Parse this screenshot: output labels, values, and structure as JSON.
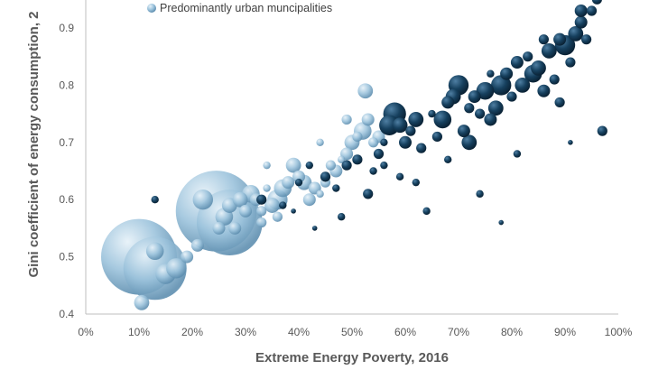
{
  "chart_data": {
    "type": "scatter",
    "xlabel": "Extreme Energy Poverty, 2016",
    "ylabel": "Gini coefficient of energy consumption, 2",
    "xlim": [
      0,
      100
    ],
    "ylim": [
      0.4,
      0.95
    ],
    "x_ticks": [
      "0%",
      "10%",
      "20%",
      "30%",
      "40%",
      "50%",
      "60%",
      "70%",
      "80%",
      "90%",
      "100%"
    ],
    "y_ticks": [
      "0.4",
      "0.5",
      "0.6",
      "0.7",
      "0.8",
      "0.9"
    ],
    "legend_position": "top",
    "series": [
      {
        "name": "Predominantly urban muncipalities",
        "color": "#9cc3dc",
        "points": [
          [
            10,
            0.5,
            30
          ],
          [
            13,
            0.48,
            25
          ],
          [
            24.5,
            0.58,
            32
          ],
          [
            27,
            0.56,
            26
          ],
          [
            13,
            0.51,
            7
          ],
          [
            10.5,
            0.42,
            6
          ],
          [
            15,
            0.47,
            8
          ],
          [
            17,
            0.48,
            8
          ],
          [
            19,
            0.5,
            5
          ],
          [
            21,
            0.52,
            5
          ],
          [
            22,
            0.6,
            8
          ],
          [
            25,
            0.55,
            5
          ],
          [
            26,
            0.57,
            7
          ],
          [
            27,
            0.59,
            6
          ],
          [
            28,
            0.55,
            5
          ],
          [
            29,
            0.6,
            6
          ],
          [
            30,
            0.58,
            5
          ],
          [
            31,
            0.61,
            7
          ],
          [
            32,
            0.6,
            5
          ],
          [
            33,
            0.58,
            4
          ],
          [
            34,
            0.62,
            3
          ],
          [
            35,
            0.59,
            6
          ],
          [
            36,
            0.6,
            8
          ],
          [
            37,
            0.62,
            7
          ],
          [
            38,
            0.63,
            5
          ],
          [
            39,
            0.66,
            6
          ],
          [
            40,
            0.64,
            5
          ],
          [
            41,
            0.63,
            6
          ],
          [
            42,
            0.6,
            5
          ],
          [
            43,
            0.62,
            5
          ],
          [
            44,
            0.61,
            3
          ],
          [
            45,
            0.63,
            4
          ],
          [
            46,
            0.66,
            4
          ],
          [
            47,
            0.65,
            5
          ],
          [
            48,
            0.67,
            3
          ],
          [
            49,
            0.68,
            5
          ],
          [
            50,
            0.7,
            6
          ],
          [
            51,
            0.71,
            4
          ],
          [
            52,
            0.72,
            7
          ],
          [
            53,
            0.74,
            5
          ],
          [
            52.5,
            0.79,
            6
          ],
          [
            54,
            0.7,
            4
          ],
          [
            55,
            0.71,
            5
          ],
          [
            49,
            0.74,
            4
          ],
          [
            44,
            0.7,
            3
          ],
          [
            33,
            0.56,
            4
          ],
          [
            36,
            0.57,
            4
          ],
          [
            34,
            0.66,
            3
          ]
        ]
      },
      {
        "name": "",
        "color": "#16405e",
        "points": [
          [
            13,
            0.6,
            3
          ],
          [
            33,
            0.6,
            4
          ],
          [
            37,
            0.59,
            3
          ],
          [
            40,
            0.63,
            3
          ],
          [
            42,
            0.66,
            3
          ],
          [
            45,
            0.64,
            4
          ],
          [
            47,
            0.62,
            3
          ],
          [
            49,
            0.66,
            4
          ],
          [
            51,
            0.67,
            4
          ],
          [
            53,
            0.61,
            4
          ],
          [
            54,
            0.65,
            3
          ],
          [
            55,
            0.68,
            4
          ],
          [
            56,
            0.7,
            3
          ],
          [
            57,
            0.73,
            8
          ],
          [
            58,
            0.75,
            9
          ],
          [
            59,
            0.73,
            6
          ],
          [
            60,
            0.7,
            5
          ],
          [
            61,
            0.72,
            4
          ],
          [
            62,
            0.74,
            6
          ],
          [
            63,
            0.69,
            4
          ],
          [
            65,
            0.75,
            3
          ],
          [
            66,
            0.71,
            4
          ],
          [
            67,
            0.74,
            7
          ],
          [
            68,
            0.77,
            5
          ],
          [
            69,
            0.78,
            6
          ],
          [
            70,
            0.8,
            8
          ],
          [
            71,
            0.72,
            5
          ],
          [
            72,
            0.7,
            6
          ],
          [
            73,
            0.78,
            5
          ],
          [
            74,
            0.75,
            4
          ],
          [
            75,
            0.79,
            7
          ],
          [
            76,
            0.74,
            5
          ],
          [
            77,
            0.76,
            6
          ],
          [
            78,
            0.8,
            8
          ],
          [
            79,
            0.82,
            5
          ],
          [
            80,
            0.78,
            4
          ],
          [
            81,
            0.84,
            5
          ],
          [
            82,
            0.8,
            6
          ],
          [
            83,
            0.85,
            4
          ],
          [
            84,
            0.82,
            7
          ],
          [
            85,
            0.83,
            6
          ],
          [
            86,
            0.79,
            5
          ],
          [
            87,
            0.86,
            6
          ],
          [
            88,
            0.81,
            4
          ],
          [
            89,
            0.88,
            5
          ],
          [
            90,
            0.87,
            8
          ],
          [
            91,
            0.84,
            4
          ],
          [
            92,
            0.89,
            6
          ],
          [
            93,
            0.91,
            5
          ],
          [
            94,
            0.88,
            4
          ],
          [
            95,
            0.93,
            4
          ],
          [
            96,
            0.95,
            4
          ],
          [
            97,
            0.72,
            4
          ],
          [
            64,
            0.58,
            3
          ],
          [
            68,
            0.67,
            3
          ],
          [
            74,
            0.61,
            3
          ],
          [
            78,
            0.56,
            2
          ],
          [
            81,
            0.68,
            3
          ],
          [
            89,
            0.77,
            4
          ],
          [
            91,
            0.7,
            2
          ],
          [
            93,
            0.93,
            5
          ],
          [
            59,
            0.64,
            3
          ],
          [
            62,
            0.63,
            3
          ],
          [
            48,
            0.57,
            3
          ],
          [
            43,
            0.55,
            2
          ],
          [
            39,
            0.58,
            2
          ],
          [
            56,
            0.66,
            3
          ],
          [
            72,
            0.76,
            4
          ],
          [
            76,
            0.82,
            3
          ],
          [
            86,
            0.88,
            4
          ]
        ]
      }
    ]
  }
}
